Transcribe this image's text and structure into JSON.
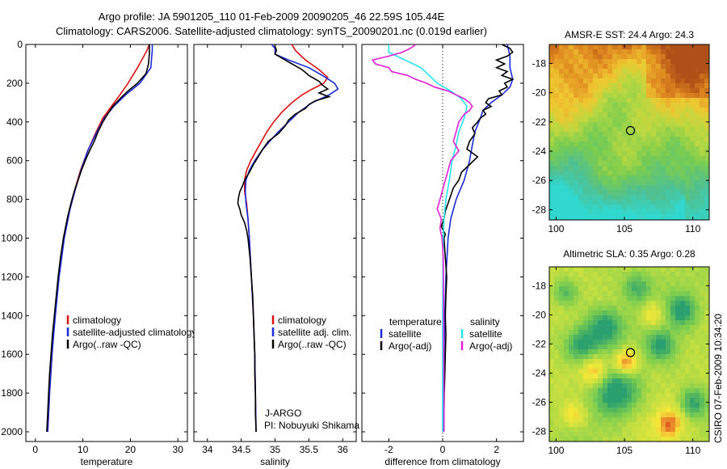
{
  "title_lines": [
    "Argo profile: JA 5901205_110 01-Feb-2009 20090205_46 22.59S 105.44E",
    "Climatology: CARS2006. Satellite-adjusted climatology: synTS_20090201.nc (0.019d earlier)"
  ],
  "side_label": "CSIRO 07-Feb-2009 10:34:20",
  "colors": {
    "climatology": "#dd1111",
    "satellite": "#1a2cd8",
    "argo": "#000000",
    "salinity_sat": "#22e5ee",
    "salinity_argo": "#e020d8"
  },
  "depth_axis": {
    "ylim": [
      0,
      2050
    ],
    "ticks": [
      0,
      200,
      400,
      600,
      800,
      1000,
      1200,
      1400,
      1600,
      1800,
      2000
    ],
    "tick_labels": [
      "0",
      "200",
      "400",
      "600",
      "800",
      "1000",
      "1200",
      "1400",
      "1600",
      "1800",
      "2000"
    ]
  },
  "chart_data": [
    {
      "type": "line",
      "id": "temperature",
      "xlabel": "temperature",
      "xlim": [
        -2,
        32
      ],
      "xticks": [
        0,
        10,
        20,
        30
      ],
      "xtick_labels": [
        "0",
        "10",
        "20",
        "30"
      ],
      "legend": [
        "climatology",
        "satellite-adjusted climatology",
        "Argo(..raw -QC)"
      ],
      "series": [
        {
          "name": "climatology",
          "color_key": "climatology",
          "depth": [
            0,
            30,
            120,
            200,
            260,
            320,
            380,
            450,
            550,
            650,
            750,
            850,
            1000,
            1200,
            1400,
            1600,
            1800,
            2000
          ],
          "values": [
            24.0,
            23.5,
            21.5,
            19.5,
            17.8,
            16.0,
            14.2,
            12.8,
            11.0,
            9.5,
            8.3,
            7.2,
            6.0,
            4.9,
            4.1,
            3.5,
            3.0,
            2.6
          ]
        },
        {
          "name": "satellite-adjusted climatology",
          "color_key": "satellite",
          "depth": [
            0,
            30,
            120,
            200,
            260,
            320,
            380,
            450,
            550,
            650,
            750,
            850,
            1000,
            1200,
            1400,
            1600,
            1800,
            2000
          ],
          "values": [
            24.6,
            24.6,
            24.3,
            22.0,
            19.0,
            16.5,
            14.5,
            13.0,
            11.0,
            9.6,
            8.4,
            7.3,
            6.1,
            5.0,
            4.2,
            3.5,
            3.0,
            2.6
          ]
        },
        {
          "name": "Argo(..raw -QC)",
          "color_key": "argo",
          "depth": [
            0,
            50,
            100,
            150,
            200,
            240,
            280,
            320,
            360,
            400,
            450,
            500,
            550,
            600,
            650,
            700,
            750,
            800,
            850,
            900,
            950,
            1000,
            1100,
            1200,
            1300,
            1400,
            1500,
            1600,
            1700,
            1800,
            1900,
            2000
          ],
          "values": [
            24.0,
            24.0,
            23.8,
            23.3,
            21.5,
            19.5,
            17.8,
            16.3,
            15.2,
            14.2,
            13.2,
            12.4,
            11.4,
            10.5,
            9.7,
            9.0,
            8.3,
            7.7,
            7.2,
            6.7,
            6.3,
            5.9,
            5.3,
            4.8,
            4.4,
            4.0,
            3.6,
            3.3,
            3.0,
            2.8,
            2.6,
            2.4
          ]
        }
      ]
    },
    {
      "type": "line",
      "id": "salinity",
      "xlabel": "salinity",
      "xlim": [
        33.8,
        36.2
      ],
      "xticks": [
        34,
        34.5,
        35,
        35.5,
        36
      ],
      "xtick_labels": [
        "34",
        "34.5",
        "35",
        "35.5",
        "36"
      ],
      "legend": [
        "climatology",
        "satellite adj. clim.",
        "Argo(..raw -QC)"
      ],
      "annotations": [
        "J-ARGO",
        "PI: Nobuyuki Shikama"
      ],
      "series": [
        {
          "name": "climatology",
          "color_key": "climatology",
          "depth": [
            0,
            30,
            80,
            130,
            170,
            200,
            230,
            260,
            300,
            350,
            400,
            450,
            500,
            550,
            600,
            650,
            700,
            760,
            820,
            900,
            1000,
            1200,
            1400,
            1600,
            1800,
            2000
          ],
          "values": [
            35.25,
            35.3,
            35.45,
            35.65,
            35.78,
            35.72,
            35.55,
            35.4,
            35.25,
            35.1,
            34.98,
            34.88,
            34.8,
            34.72,
            34.64,
            34.58,
            34.55,
            34.55,
            34.58,
            34.6,
            34.62,
            34.65,
            34.68,
            34.7,
            34.71,
            34.72
          ]
        },
        {
          "name": "satellite adj. clim.",
          "color_key": "satellite",
          "depth": [
            0,
            20,
            50,
            80,
            120,
            160,
            200,
            230,
            260,
            300,
            350,
            400,
            450,
            500,
            550,
            600,
            650,
            700,
            760,
            820,
            900,
            1000,
            1200,
            1400,
            1600,
            1800,
            2000
          ],
          "values": [
            34.95,
            35.0,
            35.0,
            35.2,
            35.5,
            35.7,
            35.88,
            35.93,
            35.8,
            35.55,
            35.35,
            35.2,
            35.05,
            34.92,
            34.8,
            34.7,
            34.62,
            34.57,
            34.56,
            34.57,
            34.6,
            34.62,
            34.65,
            34.68,
            34.7,
            34.71,
            34.72
          ]
        },
        {
          "name": "Argo(..raw -QC)",
          "color_key": "argo",
          "depth": [
            0,
            10,
            30,
            50,
            70,
            100,
            130,
            160,
            190,
            210,
            230,
            250,
            270,
            290,
            310,
            330,
            360,
            390,
            420,
            460,
            500,
            540,
            580,
            620,
            660,
            700,
            730,
            760,
            790,
            820,
            850,
            880,
            920,
            960,
            1000,
            1100,
            1200,
            1300,
            1400,
            1500,
            1600,
            1700,
            1800,
            1900,
            2000
          ],
          "values": [
            35.0,
            35.0,
            35.02,
            35.0,
            35.1,
            35.25,
            35.4,
            35.5,
            35.65,
            35.7,
            35.78,
            35.65,
            35.8,
            35.6,
            35.5,
            35.45,
            35.3,
            35.2,
            35.15,
            35.05,
            34.9,
            34.82,
            34.75,
            34.68,
            34.62,
            34.55,
            34.52,
            34.48,
            34.46,
            34.45,
            34.48,
            34.5,
            34.55,
            34.58,
            34.6,
            34.63,
            34.65,
            34.67,
            34.68,
            34.69,
            34.7,
            34.7,
            34.71,
            34.71,
            34.72
          ]
        }
      ]
    },
    {
      "type": "line",
      "id": "difference",
      "xlabel": "difference from climatology",
      "xlim": [
        -3,
        3
      ],
      "xticks": [
        -2,
        0,
        2
      ],
      "xtick_labels": [
        "-2",
        "0",
        "2"
      ],
      "legend_groups": [
        {
          "heading": "temperature",
          "items": [
            "satellite",
            "Argo(-adj)"
          ]
        },
        {
          "heading": "salinity",
          "items": [
            "satellite",
            "Argo(-adj)"
          ]
        }
      ],
      "series": [
        {
          "name": "temperature satellite",
          "color_key": "satellite",
          "depth": [
            0,
            60,
            120,
            180,
            220,
            260,
            300,
            340,
            380,
            450,
            520,
            600,
            700,
            800,
            900,
            1000,
            1200,
            1400,
            1600,
            1800,
            2000
          ],
          "values": [
            2.4,
            2.5,
            2.5,
            2.6,
            2.5,
            2.2,
            1.8,
            1.5,
            1.4,
            1.2,
            1.1,
            1.0,
            0.8,
            0.5,
            0.3,
            0.2,
            0.12,
            0.08,
            0.05,
            0.03,
            0.02
          ]
        },
        {
          "name": "temperature Argo(-adj)",
          "color_key": "argo",
          "depth": [
            0,
            20,
            40,
            60,
            80,
            100,
            120,
            140,
            160,
            180,
            200,
            220,
            240,
            260,
            280,
            300,
            320,
            340,
            360,
            380,
            400,
            430,
            460,
            500,
            540,
            580,
            620,
            660,
            700,
            740,
            780,
            820,
            860,
            900,
            940,
            980,
            1000,
            1100,
            1200,
            1300,
            1400,
            1500,
            1600,
            1700,
            1800,
            1900,
            2000
          ],
          "values": [
            2.2,
            2.5,
            2.6,
            2.4,
            2.0,
            2.3,
            2.0,
            2.4,
            2.2,
            2.6,
            2.3,
            2.4,
            2.1,
            2.2,
            1.7,
            1.6,
            1.8,
            1.5,
            1.6,
            1.4,
            1.3,
            1.1,
            1.2,
            1.0,
            0.9,
            1.3,
            1.0,
            0.7,
            0.6,
            0.4,
            0.3,
            0.2,
            0.1,
            0.05,
            -0.05,
            0.1,
            0.05,
            0.1,
            0.15,
            0.12,
            0.1,
            0.12,
            0.1,
            0.08,
            0.06,
            0.05,
            0.04
          ]
        },
        {
          "name": "salinity satellite",
          "color_key": "salinity_sat",
          "depth": [
            0,
            40,
            80,
            120,
            160,
            200,
            240,
            280,
            320,
            380,
            450,
            520,
            600,
            700,
            800,
            900,
            1000,
            1200,
            1400,
            1600,
            1800,
            2000
          ],
          "values": [
            -2.0,
            -2.0,
            -1.4,
            -0.8,
            -0.5,
            -0.2,
            0.3,
            0.7,
            0.9,
            0.8,
            0.6,
            0.5,
            0.35,
            0.25,
            0.12,
            0.05,
            0.02,
            0.01,
            0.0,
            0.0,
            0.0,
            0.0
          ]
        },
        {
          "name": "salinity Argo(-adj)",
          "color_key": "salinity_argo",
          "depth": [
            0,
            20,
            40,
            60,
            80,
            100,
            120,
            140,
            160,
            180,
            200,
            220,
            240,
            260,
            280,
            300,
            320,
            340,
            360,
            400,
            450,
            500,
            550,
            600,
            650,
            700,
            750,
            800,
            850,
            900,
            950,
            1000,
            1100,
            1200,
            1400,
            1600,
            1800,
            2000
          ],
          "values": [
            -1.0,
            -1.2,
            -1.5,
            -2.0,
            -2.6,
            -2.5,
            -2.0,
            -1.9,
            -1.3,
            -1.0,
            -0.6,
            -0.3,
            0.2,
            0.5,
            0.8,
            1.0,
            1.1,
            1.0,
            0.8,
            0.6,
            0.5,
            0.4,
            0.6,
            0.3,
            0.2,
            0.1,
            0.0,
            -0.1,
            -0.2,
            -0.05,
            -0.1,
            -0.02,
            0.02,
            0.03,
            0.04,
            0.04,
            0.05,
            0.05
          ]
        }
      ]
    },
    {
      "type": "heatmap",
      "id": "sst-map",
      "title": "AMSR-E SST: 24.4 Argo: 24.3",
      "xlim": [
        99.5,
        111.2
      ],
      "ylim": [
        -28.7,
        -16.7
      ],
      "xticks": [
        100,
        105,
        110
      ],
      "xtick_labels": [
        "100",
        "105",
        "110"
      ],
      "yticks": [
        -18,
        -20,
        -22,
        -24,
        -26,
        -28
      ],
      "ytick_labels": [
        "-18",
        "-20",
        "-22",
        "-24",
        "-26",
        "-28"
      ],
      "marker": {
        "lon": 105.44,
        "lat": -22.59
      },
      "stops": [
        {
          "v": 0.0,
          "c": "#30d8d0"
        },
        {
          "v": 0.22,
          "c": "#50c090"
        },
        {
          "v": 0.42,
          "c": "#78cc50"
        },
        {
          "v": 0.58,
          "c": "#bcd840"
        },
        {
          "v": 0.72,
          "c": "#f0c830"
        },
        {
          "v": 0.86,
          "c": "#e08a20"
        },
        {
          "v": 1.0,
          "c": "#b05018"
        }
      ]
    },
    {
      "type": "heatmap",
      "id": "sla-map",
      "title": "Altimetric SLA: 0.35 Argo: 0.28",
      "xlim": [
        99.5,
        111.2
      ],
      "ylim": [
        -28.7,
        -16.7
      ],
      "xticks": [
        100,
        105,
        110
      ],
      "xtick_labels": [
        "100",
        "105",
        "110"
      ],
      "yticks": [
        -18,
        -20,
        -22,
        -24,
        -26,
        -28
      ],
      "ytick_labels": [
        "-18",
        "-20",
        "-22",
        "-24",
        "-26",
        "-28"
      ],
      "marker": {
        "lon": 105.44,
        "lat": -22.59
      },
      "stops": [
        {
          "v": 0.0,
          "c": "#2aa070"
        },
        {
          "v": 0.3,
          "c": "#78cc50"
        },
        {
          "v": 0.55,
          "c": "#c8e040"
        },
        {
          "v": 0.75,
          "c": "#f8e838"
        },
        {
          "v": 0.9,
          "c": "#f0a030"
        },
        {
          "v": 1.0,
          "c": "#e06020"
        }
      ]
    }
  ]
}
